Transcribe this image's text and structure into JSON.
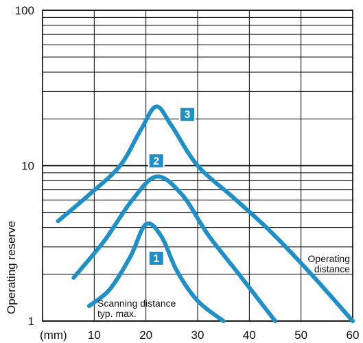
{
  "chart_data": {
    "type": "line",
    "xlabel_unit": "(mm)",
    "ylabel": "Operating reserve",
    "x_ticks": [
      "10",
      "20",
      "30",
      "40",
      "50",
      "60"
    ],
    "y_ticks": [
      "1",
      "10",
      "100"
    ],
    "xlim": [
      0,
      60
    ],
    "ylim": [
      1,
      100
    ],
    "y_scale": "log",
    "grid": true,
    "annotations": {
      "operating_line1": "Operating",
      "operating_line2": "distance",
      "scanning_line1": "Scanning distance",
      "scanning_line2": "typ. max."
    },
    "series": [
      {
        "label": "1",
        "color": "#1e8fc7",
        "x": [
          9,
          13,
          17,
          20,
          23,
          26,
          30,
          35
        ],
        "y": [
          1.25,
          1.6,
          2.6,
          4.2,
          3.5,
          2.1,
          1.35,
          1.0
        ],
        "label_pos": [
          22,
          2.55
        ]
      },
      {
        "label": "2",
        "color": "#1e8fc7",
        "x": [
          6,
          12,
          17,
          22,
          27,
          32,
          38,
          45
        ],
        "y": [
          1.9,
          3.3,
          5.8,
          8.5,
          6.5,
          3.6,
          2.0,
          1.0
        ],
        "label_pos": [
          22,
          10.8
        ]
      },
      {
        "label": "3",
        "color": "#1e8fc7",
        "x": [
          3,
          9,
          15,
          19,
          22,
          25,
          30,
          37,
          44,
          52,
          60
        ],
        "y": [
          4.4,
          6.5,
          10.0,
          17.0,
          24.0,
          18.0,
          10.0,
          6.2,
          3.8,
          2.0,
          1.0
        ],
        "label_pos": [
          28,
          21.5
        ]
      }
    ]
  }
}
